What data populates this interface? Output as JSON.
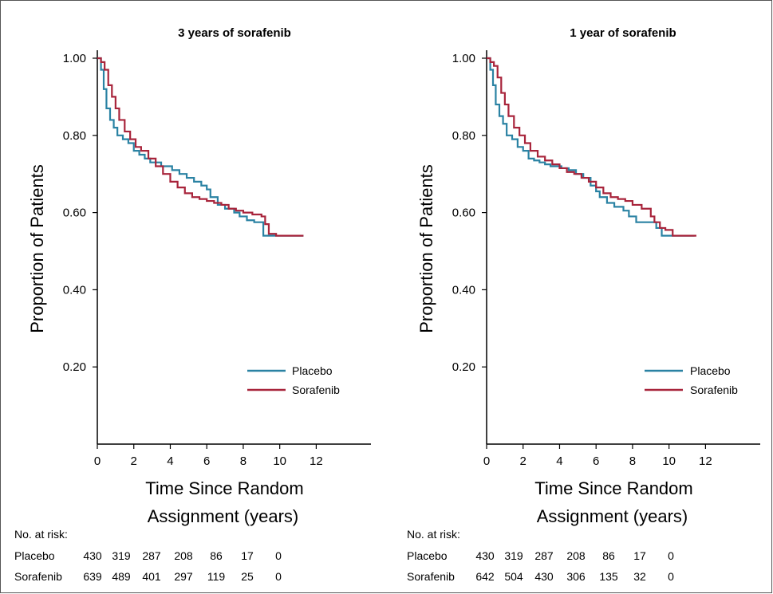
{
  "colors": {
    "placebo": "#2a82a3",
    "sorafenib": "#a8243b"
  },
  "chart_data": [
    {
      "type": "line",
      "title": "3 years of sorafenib",
      "xlabel_line1": "Time Since Random",
      "xlabel_line2": "Assignment (years)",
      "ylabel": "Proportion of Patients",
      "xlim": [
        0,
        15
      ],
      "ylim": [
        0,
        1.0
      ],
      "xticks": [
        0,
        2,
        4,
        6,
        8,
        10,
        12
      ],
      "yticks": [
        0.2,
        0.4,
        0.6,
        0.8,
        1.0
      ],
      "ytick_labels": [
        "0.20",
        "0.40",
        "0.60",
        "0.80",
        "1.00"
      ],
      "legend_position": "lower-right",
      "series": [
        {
          "name": "Placebo",
          "color_key": "placebo",
          "x": [
            0,
            0.2,
            0.35,
            0.5,
            0.7,
            0.9,
            1.1,
            1.4,
            1.7,
            2.0,
            2.3,
            2.6,
            2.9,
            3.2,
            3.5,
            3.8,
            4.1,
            4.5,
            4.9,
            5.3,
            5.7,
            6.0,
            6.2,
            6.6,
            7.0,
            7.5,
            7.8,
            8.2,
            8.6,
            9.0,
            9.1,
            9.5,
            10.0,
            10.5,
            11.3
          ],
          "y": [
            1.0,
            0.97,
            0.92,
            0.87,
            0.84,
            0.82,
            0.8,
            0.79,
            0.78,
            0.76,
            0.75,
            0.74,
            0.73,
            0.73,
            0.72,
            0.72,
            0.71,
            0.7,
            0.69,
            0.68,
            0.67,
            0.66,
            0.64,
            0.62,
            0.61,
            0.6,
            0.59,
            0.58,
            0.575,
            0.575,
            0.54,
            0.54,
            0.54,
            0.54,
            0.54
          ]
        },
        {
          "name": "Sorafenib",
          "color_key": "sorafenib",
          "x": [
            0,
            0.2,
            0.4,
            0.6,
            0.8,
            1.0,
            1.2,
            1.5,
            1.8,
            2.1,
            2.4,
            2.8,
            3.2,
            3.6,
            4.0,
            4.4,
            4.8,
            5.2,
            5.6,
            6.0,
            6.4,
            6.8,
            7.2,
            7.6,
            8.0,
            8.5,
            9.0,
            9.2,
            9.4,
            9.8,
            10.5,
            11.3
          ],
          "y": [
            1.0,
            0.99,
            0.97,
            0.93,
            0.9,
            0.87,
            0.84,
            0.81,
            0.79,
            0.77,
            0.76,
            0.74,
            0.72,
            0.7,
            0.68,
            0.665,
            0.65,
            0.64,
            0.635,
            0.63,
            0.625,
            0.62,
            0.61,
            0.605,
            0.6,
            0.595,
            0.59,
            0.57,
            0.545,
            0.54,
            0.54,
            0.54
          ]
        }
      ],
      "risk_table": {
        "header": "No. at risk:",
        "rows": [
          {
            "label": "Placebo",
            "values": [
              "430",
              "319",
              "287",
              "208",
              "86",
              "17",
              "0"
            ]
          },
          {
            "label": "Sorafenib",
            "values": [
              "639",
              "489",
              "401",
              "297",
              "119",
              "25",
              "0"
            ]
          }
        ]
      }
    },
    {
      "type": "line",
      "title": "1 year of sorafenib",
      "xlabel_line1": "Time Since Random",
      "xlabel_line2": "Assignment (years)",
      "ylabel": "Proportion of Patients",
      "xlim": [
        0,
        15
      ],
      "ylim": [
        0,
        1.0
      ],
      "xticks": [
        0,
        2,
        4,
        6,
        8,
        10,
        12
      ],
      "yticks": [
        0.2,
        0.4,
        0.6,
        0.8,
        1.0
      ],
      "ytick_labels": [
        "0.20",
        "0.40",
        "0.60",
        "0.80",
        "1.00"
      ],
      "legend_position": "lower-right",
      "series": [
        {
          "name": "Placebo",
          "color_key": "placebo",
          "x": [
            0,
            0.2,
            0.35,
            0.5,
            0.7,
            0.9,
            1.1,
            1.4,
            1.7,
            2.0,
            2.3,
            2.6,
            2.9,
            3.2,
            3.5,
            3.8,
            4.1,
            4.5,
            4.9,
            5.3,
            5.7,
            6.0,
            6.2,
            6.6,
            7.0,
            7.5,
            7.8,
            8.2,
            8.6,
            9.0,
            9.3,
            9.6,
            10.0,
            10.5,
            11.4
          ],
          "y": [
            1.0,
            0.97,
            0.93,
            0.88,
            0.85,
            0.83,
            0.8,
            0.79,
            0.77,
            0.76,
            0.74,
            0.735,
            0.73,
            0.725,
            0.72,
            0.72,
            0.715,
            0.71,
            0.7,
            0.69,
            0.67,
            0.655,
            0.64,
            0.625,
            0.615,
            0.605,
            0.59,
            0.575,
            0.575,
            0.575,
            0.56,
            0.54,
            0.54,
            0.54,
            0.54
          ]
        },
        {
          "name": "Sorafenib",
          "color_key": "sorafenib",
          "x": [
            0,
            0.2,
            0.4,
            0.6,
            0.8,
            1.0,
            1.2,
            1.5,
            1.8,
            2.1,
            2.4,
            2.8,
            3.2,
            3.6,
            4.0,
            4.4,
            4.8,
            5.2,
            5.6,
            6.0,
            6.4,
            6.8,
            7.2,
            7.6,
            8.0,
            8.5,
            9.0,
            9.2,
            9.5,
            9.8,
            10.2,
            10.8,
            11.5
          ],
          "y": [
            1.0,
            0.99,
            0.98,
            0.95,
            0.91,
            0.88,
            0.85,
            0.82,
            0.8,
            0.78,
            0.76,
            0.745,
            0.735,
            0.725,
            0.715,
            0.705,
            0.7,
            0.69,
            0.68,
            0.665,
            0.65,
            0.64,
            0.635,
            0.63,
            0.62,
            0.61,
            0.59,
            0.575,
            0.56,
            0.555,
            0.54,
            0.54,
            0.54
          ]
        }
      ],
      "risk_table": {
        "header": "No. at risk:",
        "rows": [
          {
            "label": "Placebo",
            "values": [
              "430",
              "319",
              "287",
              "208",
              "86",
              "17",
              "0"
            ]
          },
          {
            "label": "Sorafenib",
            "values": [
              "642",
              "504",
              "430",
              "306",
              "135",
              "32",
              "0"
            ]
          }
        ]
      }
    }
  ]
}
